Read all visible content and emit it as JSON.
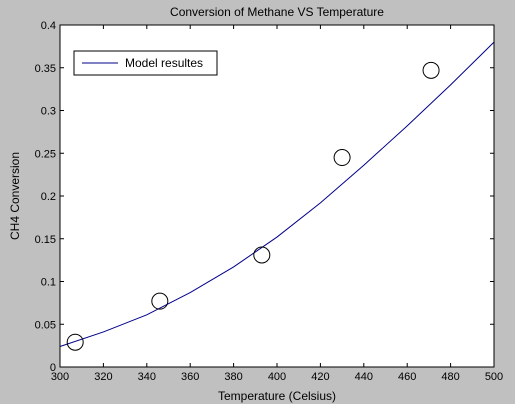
{
  "chart_data": {
    "type": "scatter",
    "title": "Conversion of Methane VS Temperature",
    "xlabel": "Temperature (Celsius)",
    "ylabel": "CH4 Conversion",
    "xlim": [
      300,
      500
    ],
    "ylim": [
      0,
      0.4
    ],
    "xticks": [
      300,
      320,
      340,
      360,
      380,
      400,
      420,
      440,
      460,
      480,
      500
    ],
    "yticks": [
      0,
      0.05,
      0.1,
      0.15,
      0.2,
      0.25,
      0.3,
      0.35,
      0.4
    ],
    "grid": false,
    "legend_position": "top-left",
    "background_color": "#c0c0c0",
    "axes_color": "#ffffff",
    "series": [
      {
        "name": "Model resultes",
        "style": "line",
        "color": "#00008b",
        "x": [
          300,
          320,
          340,
          360,
          380,
          400,
          420,
          440,
          460,
          480,
          500
        ],
        "y": [
          0.024,
          0.041,
          0.061,
          0.087,
          0.117,
          0.152,
          0.192,
          0.236,
          0.282,
          0.33,
          0.38
        ]
      },
      {
        "style": "markers",
        "marker": "circle",
        "color": "#000000",
        "x": [
          307,
          346,
          393,
          430,
          471
        ],
        "y": [
          0.029,
          0.077,
          0.131,
          0.245,
          0.347
        ]
      }
    ]
  }
}
